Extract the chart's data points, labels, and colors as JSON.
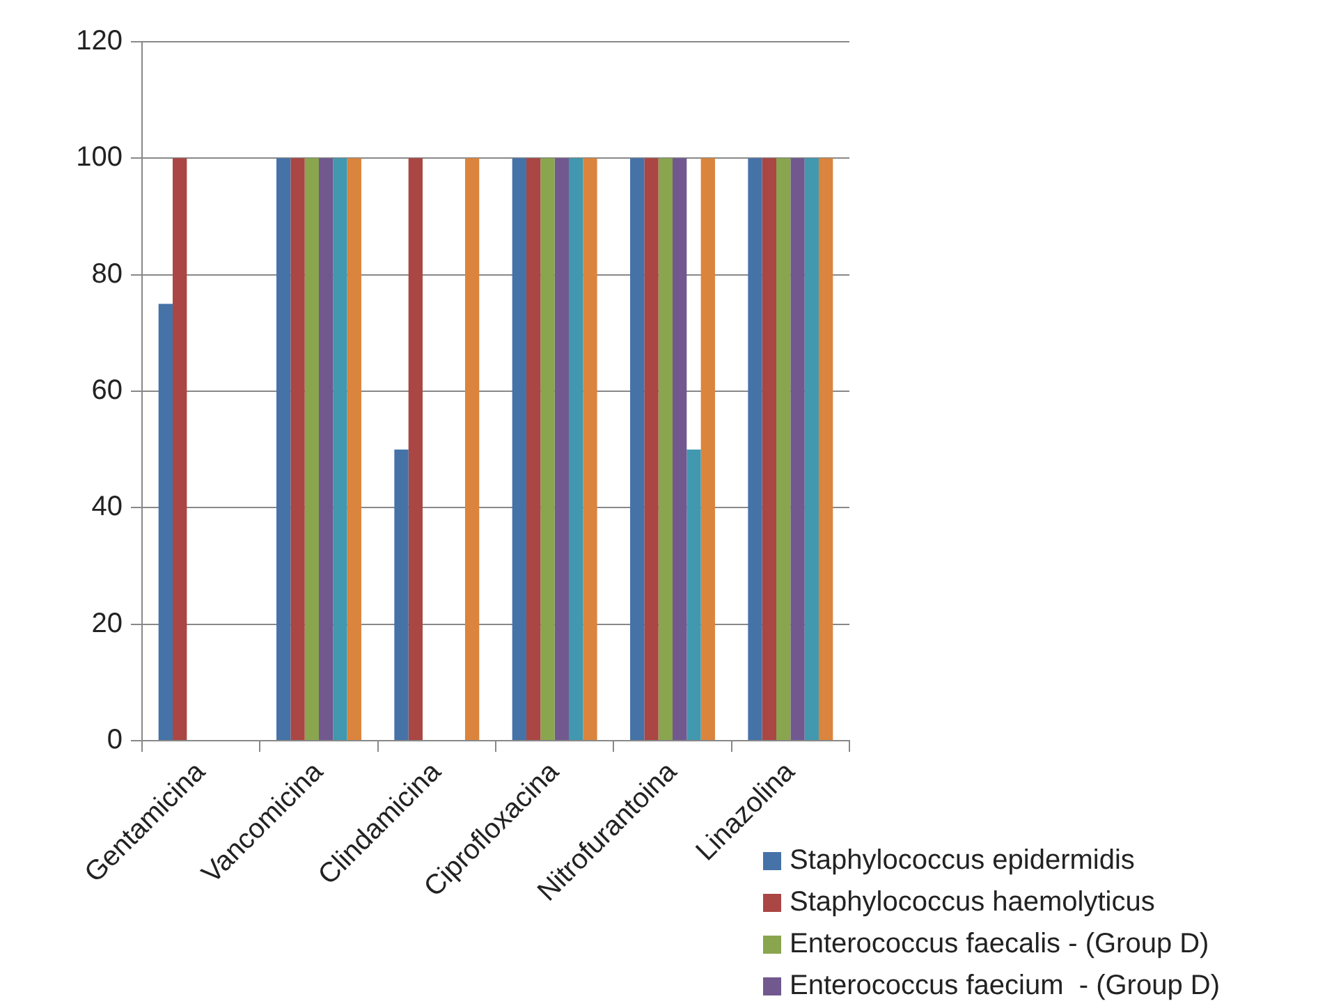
{
  "chart_data": {
    "type": "bar",
    "categories": [
      "Gentamicina",
      "Vancomicina",
      "Clindamicina",
      "Ciprofloxacina",
      "Nitrofurantoina",
      "Linazolina"
    ],
    "series": [
      {
        "name": "Staphylococcus epidermidis",
        "color": "#4572a7",
        "values": [
          75,
          100,
          50,
          100,
          100,
          100
        ]
      },
      {
        "name": "Staphylococcus haemolyticus",
        "color": "#aa4643",
        "values": [
          100,
          100,
          100,
          100,
          100,
          100
        ]
      },
      {
        "name": "Enterococcus faecalis - (Group D)",
        "color": "#89a54e",
        "values": [
          0,
          100,
          0,
          100,
          100,
          100
        ]
      },
      {
        "name": "Enterococcus faecium  - (Group D)",
        "color": "#71588f",
        "values": [
          0,
          100,
          0,
          100,
          100,
          100
        ]
      },
      {
        "color": "#4198af",
        "values": [
          0,
          100,
          0,
          100,
          50,
          100
        ]
      },
      {
        "color": "#db843d",
        "values": [
          0,
          100,
          100,
          100,
          100,
          100
        ]
      }
    ],
    "ylim": [
      0,
      120
    ],
    "yticks": [
      0,
      20,
      40,
      60,
      80,
      100,
      120
    ],
    "grid": "y",
    "legend": "bottom right"
  }
}
